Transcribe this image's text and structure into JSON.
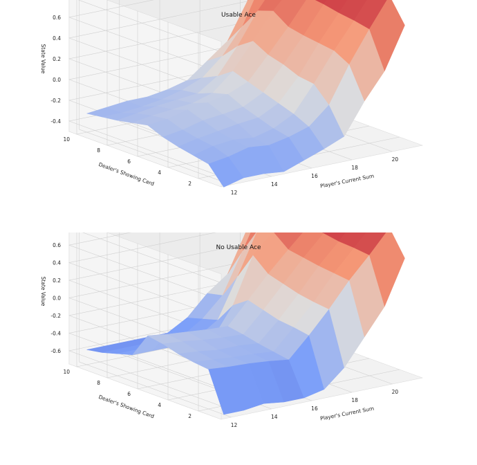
{
  "chart_data": [
    {
      "type": "surface3d",
      "title": "Usable Ace",
      "xlabel": "Player's Current Sum",
      "ylabel": "Dealer's Showing Card",
      "zlabel": "State Value",
      "x": [
        12,
        13,
        14,
        15,
        16,
        17,
        18,
        19,
        20,
        21
      ],
      "y": [
        1,
        2,
        3,
        4,
        5,
        6,
        7,
        8,
        9,
        10
      ],
      "xticks": [
        "12",
        "14",
        "16",
        "18",
        "20"
      ],
      "yticks": [
        "2",
        "4",
        "6",
        "8",
        "10"
      ],
      "zticks": [
        "-0.4",
        "-0.2",
        "0.0",
        "0.2",
        "0.4",
        "0.6",
        "0.8"
      ],
      "zlim": [
        -0.5,
        0.9
      ],
      "z": [
        [
          -0.55,
          -0.5,
          -0.5,
          -0.52,
          -0.45,
          -0.38,
          -0.3,
          0.0,
          0.25,
          0.65
        ],
        [
          -0.38,
          -0.35,
          -0.3,
          -0.32,
          -0.28,
          -0.22,
          -0.05,
          0.3,
          0.6,
          0.88
        ],
        [
          -0.35,
          -0.3,
          -0.28,
          -0.3,
          -0.25,
          -0.15,
          0.1,
          0.38,
          0.63,
          0.9
        ],
        [
          -0.32,
          -0.28,
          -0.25,
          -0.22,
          -0.2,
          -0.1,
          0.12,
          0.4,
          0.65,
          0.9
        ],
        [
          -0.28,
          -0.25,
          -0.2,
          -0.18,
          -0.15,
          -0.05,
          0.18,
          0.42,
          0.68,
          0.9
        ],
        [
          -0.22,
          -0.2,
          -0.15,
          -0.12,
          -0.08,
          0.0,
          0.22,
          0.45,
          0.7,
          0.9
        ],
        [
          -0.25,
          -0.22,
          -0.2,
          -0.18,
          -0.12,
          0.05,
          0.3,
          0.55,
          0.75,
          0.92
        ],
        [
          -0.28,
          -0.25,
          -0.22,
          -0.2,
          -0.18,
          -0.05,
          0.2,
          0.5,
          0.75,
          0.92
        ],
        [
          -0.3,
          -0.3,
          -0.28,
          -0.25,
          -0.2,
          -0.12,
          0.05,
          0.3,
          0.7,
          0.92
        ],
        [
          -0.32,
          -0.3,
          -0.28,
          -0.28,
          -0.25,
          -0.2,
          -0.05,
          0.1,
          0.45,
          0.88
        ]
      ]
    },
    {
      "type": "surface3d",
      "title": "No Usable Ace",
      "xlabel": "Player's Current Sum",
      "ylabel": "Dealer's Showing Card",
      "zlabel": "State Value",
      "x": [
        12,
        13,
        14,
        15,
        16,
        17,
        18,
        19,
        20,
        21
      ],
      "y": [
        1,
        2,
        3,
        4,
        5,
        6,
        7,
        8,
        9,
        10
      ],
      "xticks": [
        "12",
        "14",
        "16",
        "18",
        "20"
      ],
      "yticks": [
        "2",
        "4",
        "6",
        "8",
        "10"
      ],
      "zticks": [
        "-0.6",
        "-0.4",
        "-0.2",
        "0.0",
        "0.2",
        "0.4",
        "0.6",
        "0.8"
      ],
      "zlim": [
        -0.75,
        0.9
      ],
      "z": [
        [
          -0.75,
          -0.75,
          -0.72,
          -0.75,
          -0.75,
          -0.7,
          -0.5,
          -0.2,
          0.1,
          0.6
        ],
        [
          -0.3,
          -0.32,
          -0.33,
          -0.35,
          -0.38,
          -0.15,
          0.1,
          0.38,
          0.62,
          0.88
        ],
        [
          -0.28,
          -0.3,
          -0.32,
          -0.33,
          -0.35,
          -0.12,
          0.12,
          0.4,
          0.64,
          0.88
        ],
        [
          -0.25,
          -0.27,
          -0.3,
          -0.3,
          -0.32,
          -0.1,
          0.15,
          0.42,
          0.65,
          0.9
        ],
        [
          -0.2,
          -0.22,
          -0.25,
          -0.27,
          -0.28,
          -0.05,
          0.2,
          0.45,
          0.68,
          0.9
        ],
        [
          -0.17,
          -0.2,
          -0.22,
          -0.24,
          -0.25,
          0.0,
          0.25,
          0.48,
          0.7,
          0.9
        ],
        [
          -0.45,
          -0.45,
          -0.45,
          -0.45,
          -0.45,
          -0.12,
          0.4,
          0.62,
          0.77,
          0.92
        ],
        [
          -0.5,
          -0.5,
          -0.5,
          -0.5,
          -0.5,
          -0.35,
          0.1,
          0.58,
          0.78,
          0.93
        ],
        [
          -0.55,
          -0.55,
          -0.55,
          -0.55,
          -0.55,
          -0.4,
          -0.18,
          0.28,
          0.75,
          0.93
        ],
        [
          -0.58,
          -0.58,
          -0.58,
          -0.58,
          -0.58,
          -0.45,
          -0.22,
          -0.05,
          0.43,
          0.9
        ]
      ]
    }
  ]
}
